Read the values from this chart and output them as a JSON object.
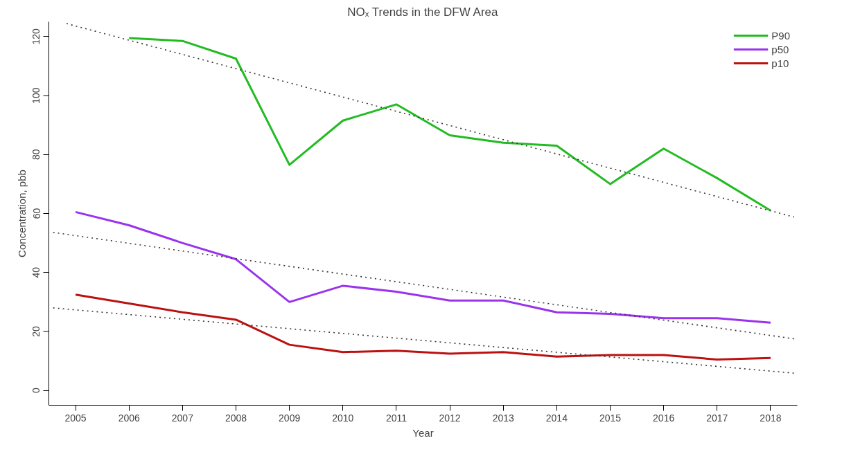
{
  "chart_data": {
    "type": "line",
    "title": "NOₓ Trends in the DFW Area",
    "xlabel": "Year",
    "ylabel": "Concentration, pbb",
    "x": [
      2005,
      2006,
      2007,
      2008,
      2009,
      2010,
      2011,
      2012,
      2013,
      2014,
      2015,
      2016,
      2017,
      2018
    ],
    "series": [
      {
        "name": "P90",
        "color": "#22bb22",
        "values": [
          null,
          119.5,
          118.5,
          112.5,
          76.5,
          91.5,
          97,
          86.5,
          84,
          83,
          70,
          82,
          72,
          61
        ]
      },
      {
        "name": "p50",
        "color": "#9933ee",
        "values": [
          60.5,
          56,
          50,
          44.5,
          30,
          35.5,
          33.5,
          30.5,
          30.5,
          26.5,
          26,
          24.5,
          24.5,
          23
        ]
      },
      {
        "name": "p10",
        "color": "#bb1111",
        "values": [
          32.5,
          29.5,
          26.5,
          24,
          15.5,
          13,
          13.5,
          12.5,
          13,
          11.5,
          12,
          12,
          10.5,
          11
        ]
      },
      {
        "type": "line",
        "color": "#333333",
        "line_style": "dotted",
        "x": [
          2004.83,
          2018.44
        ],
        "values": [
          124.4,
          58.8
        ]
      },
      {
        "type": "line",
        "color": "#333333",
        "line_style": "dotted",
        "x": [
          2004.58,
          2018.44
        ],
        "values": [
          53.6,
          17.5
        ]
      },
      {
        "type": "line",
        "color": "#333333",
        "line_style": "dotted",
        "x": [
          2004.58,
          2018.48
        ],
        "values": [
          28,
          5.8
        ]
      }
    ],
    "xlim": [
      2004.5,
      2018.5
    ],
    "ylim": [
      -5,
      125
    ],
    "xticks": [
      2005,
      2006,
      2007,
      2008,
      2009,
      2010,
      2011,
      2012,
      2013,
      2014,
      2015,
      2016,
      2017,
      2018
    ],
    "yticks": [
      0,
      20,
      40,
      60,
      80,
      100,
      120
    ],
    "grid": false,
    "legend": "top right",
    "line_style": "solid"
  }
}
